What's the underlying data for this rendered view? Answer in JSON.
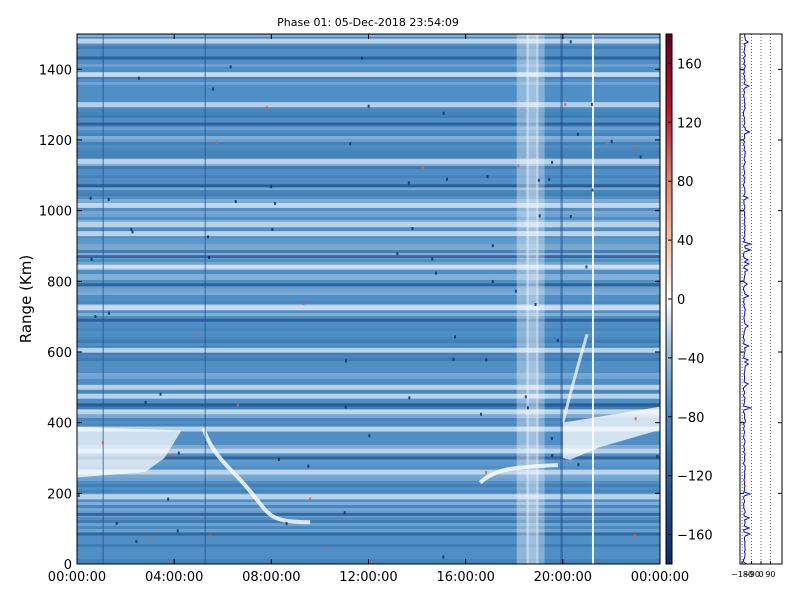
{
  "title": "Phase 01: 05-Dec-2018 23:54:09",
  "chart_data": [
    {
      "type": "heatmap",
      "title": "Phase 01: 05-Dec-2018 23:54:09",
      "xlabel": "",
      "ylabel": "Range (Km)",
      "x_ticks": [
        "00:00:00",
        "04:00:00",
        "08:00:00",
        "12:00:00",
        "16:00:00",
        "20:00:00",
        "00:00:00"
      ],
      "x_tick_hours": [
        0,
        4,
        8,
        12,
        16,
        20,
        24
      ],
      "xlim_hours": [
        0,
        24
      ],
      "y_ticks": [
        0,
        200,
        400,
        600,
        800,
        1000,
        1200,
        1400
      ],
      "ylim": [
        0,
        1500
      ],
      "colorbar": {
        "ticks": [
          160,
          120,
          80,
          40,
          0,
          -40,
          -80,
          -120,
          -160
        ],
        "range": [
          -180,
          180
        ],
        "colormap": "diverging blue-white-red"
      },
      "colors": {
        "background_blue": "#4f8fc6",
        "deep_blue": "#1f4e8a",
        "white": "#ffffff",
        "red": "#b2182b"
      },
      "bright_range_bands_km": [
        1480,
        1385,
        1300,
        1140,
        1015,
        960,
        935,
        840,
        725,
        605,
        500,
        475,
        430,
        382,
        320,
        260,
        190
      ],
      "dark_range_bands_km": [
        1432,
        1245,
        1070,
        870,
        790,
        690,
        450,
        300,
        140,
        85
      ]
    },
    {
      "type": "line",
      "title": "",
      "x_ticks": [
        "−180",
        "−90",
        "0",
        "90"
      ],
      "x_values": [
        -180,
        -90,
        0,
        90
      ],
      "xlim": [
        -200,
        200
      ],
      "ylim": [
        0,
        1500
      ],
      "grid": true,
      "series_color": "#0000ee"
    }
  ]
}
